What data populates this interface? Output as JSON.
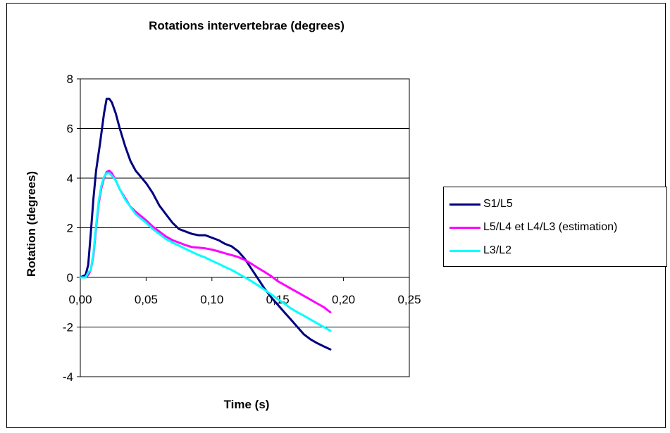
{
  "chart_data": {
    "type": "line",
    "title": "Rotations intervertebrae (degrees)",
    "xlabel": "Time (s)",
    "ylabel": "Rotation (degrees)",
    "xlim": [
      0,
      0.25
    ],
    "ylim": [
      -4,
      8
    ],
    "x_ticks": [
      0,
      0.05,
      0.1,
      0.15,
      0.2,
      0.25
    ],
    "x_tick_labels": [
      "0,00",
      "0,05",
      "0,10",
      "0,15",
      "0,20",
      "0,25"
    ],
    "y_ticks": [
      -4,
      -2,
      0,
      2,
      4,
      6,
      8
    ],
    "y_tick_labels": [
      "-4",
      "-2",
      "0",
      "2",
      "4",
      "6",
      "8"
    ],
    "grid": "horizontal",
    "legend_position": "right",
    "series": [
      {
        "name": "S1/L5",
        "color": "#000080",
        "points": [
          [
            0.0,
            0.0
          ],
          [
            0.004,
            0.1
          ],
          [
            0.006,
            0.5
          ],
          [
            0.008,
            1.8
          ],
          [
            0.01,
            3.2
          ],
          [
            0.012,
            4.3
          ],
          [
            0.015,
            5.4
          ],
          [
            0.018,
            6.6
          ],
          [
            0.02,
            7.2
          ],
          [
            0.022,
            7.2
          ],
          [
            0.024,
            7.05
          ],
          [
            0.027,
            6.6
          ],
          [
            0.03,
            6.0
          ],
          [
            0.034,
            5.3
          ],
          [
            0.038,
            4.7
          ],
          [
            0.042,
            4.3
          ],
          [
            0.05,
            3.8
          ],
          [
            0.055,
            3.4
          ],
          [
            0.06,
            2.9
          ],
          [
            0.065,
            2.55
          ],
          [
            0.07,
            2.2
          ],
          [
            0.075,
            1.95
          ],
          [
            0.08,
            1.85
          ],
          [
            0.085,
            1.75
          ],
          [
            0.09,
            1.7
          ],
          [
            0.095,
            1.7
          ],
          [
            0.1,
            1.6
          ],
          [
            0.105,
            1.5
          ],
          [
            0.11,
            1.35
          ],
          [
            0.115,
            1.25
          ],
          [
            0.12,
            1.05
          ],
          [
            0.125,
            0.75
          ],
          [
            0.13,
            0.35
          ],
          [
            0.135,
            -0.05
          ],
          [
            0.14,
            -0.45
          ],
          [
            0.145,
            -0.8
          ],
          [
            0.15,
            -1.1
          ],
          [
            0.155,
            -1.4
          ],
          [
            0.16,
            -1.7
          ],
          [
            0.165,
            -2.0
          ],
          [
            0.17,
            -2.3
          ],
          [
            0.175,
            -2.5
          ],
          [
            0.18,
            -2.65
          ],
          [
            0.185,
            -2.78
          ],
          [
            0.19,
            -2.9
          ]
        ]
      },
      {
        "name": "L5/L4 et L4/L3 (estimation)",
        "color": "#FF00FF",
        "points": [
          [
            0.0,
            0.0
          ],
          [
            0.004,
            0.0
          ],
          [
            0.006,
            0.1
          ],
          [
            0.008,
            0.3
          ],
          [
            0.01,
            0.9
          ],
          [
            0.012,
            2.0
          ],
          [
            0.014,
            3.0
          ],
          [
            0.016,
            3.6
          ],
          [
            0.018,
            4.0
          ],
          [
            0.02,
            4.25
          ],
          [
            0.022,
            4.3
          ],
          [
            0.024,
            4.2
          ],
          [
            0.027,
            3.9
          ],
          [
            0.03,
            3.55
          ],
          [
            0.034,
            3.2
          ],
          [
            0.038,
            2.85
          ],
          [
            0.042,
            2.65
          ],
          [
            0.05,
            2.3
          ],
          [
            0.055,
            2.05
          ],
          [
            0.06,
            1.85
          ],
          [
            0.065,
            1.65
          ],
          [
            0.07,
            1.5
          ],
          [
            0.075,
            1.4
          ],
          [
            0.08,
            1.3
          ],
          [
            0.085,
            1.22
          ],
          [
            0.09,
            1.2
          ],
          [
            0.095,
            1.17
          ],
          [
            0.1,
            1.12
          ],
          [
            0.105,
            1.05
          ],
          [
            0.11,
            0.97
          ],
          [
            0.115,
            0.9
          ],
          [
            0.12,
            0.82
          ],
          [
            0.125,
            0.7
          ],
          [
            0.13,
            0.55
          ],
          [
            0.135,
            0.38
          ],
          [
            0.14,
            0.22
          ],
          [
            0.145,
            0.05
          ],
          [
            0.15,
            -0.15
          ],
          [
            0.155,
            -0.3
          ],
          [
            0.16,
            -0.45
          ],
          [
            0.165,
            -0.6
          ],
          [
            0.17,
            -0.75
          ],
          [
            0.175,
            -0.9
          ],
          [
            0.18,
            -1.05
          ],
          [
            0.185,
            -1.2
          ],
          [
            0.19,
            -1.4
          ]
        ]
      },
      {
        "name": "L3/L2",
        "color": "#00FFFF",
        "points": [
          [
            0.0,
            0.0
          ],
          [
            0.004,
            0.0
          ],
          [
            0.006,
            0.2
          ],
          [
            0.008,
            0.3
          ],
          [
            0.01,
            1.0
          ],
          [
            0.012,
            2.1
          ],
          [
            0.014,
            3.1
          ],
          [
            0.016,
            3.7
          ],
          [
            0.018,
            4.05
          ],
          [
            0.02,
            4.2
          ],
          [
            0.022,
            4.2
          ],
          [
            0.024,
            4.1
          ],
          [
            0.027,
            3.9
          ],
          [
            0.03,
            3.55
          ],
          [
            0.034,
            3.15
          ],
          [
            0.038,
            2.85
          ],
          [
            0.042,
            2.55
          ],
          [
            0.05,
            2.2
          ],
          [
            0.055,
            1.95
          ],
          [
            0.06,
            1.75
          ],
          [
            0.065,
            1.55
          ],
          [
            0.07,
            1.4
          ],
          [
            0.075,
            1.28
          ],
          [
            0.08,
            1.15
          ],
          [
            0.085,
            1.02
          ],
          [
            0.09,
            0.9
          ],
          [
            0.095,
            0.8
          ],
          [
            0.1,
            0.67
          ],
          [
            0.105,
            0.55
          ],
          [
            0.11,
            0.42
          ],
          [
            0.115,
            0.3
          ],
          [
            0.12,
            0.15
          ],
          [
            0.125,
            0.0
          ],
          [
            0.13,
            -0.15
          ],
          [
            0.135,
            -0.32
          ],
          [
            0.14,
            -0.5
          ],
          [
            0.145,
            -0.68
          ],
          [
            0.15,
            -0.88
          ],
          [
            0.155,
            -1.05
          ],
          [
            0.16,
            -1.25
          ],
          [
            0.165,
            -1.4
          ],
          [
            0.17,
            -1.55
          ],
          [
            0.175,
            -1.7
          ],
          [
            0.18,
            -1.85
          ],
          [
            0.185,
            -2.0
          ],
          [
            0.19,
            -2.15
          ]
        ]
      }
    ]
  }
}
